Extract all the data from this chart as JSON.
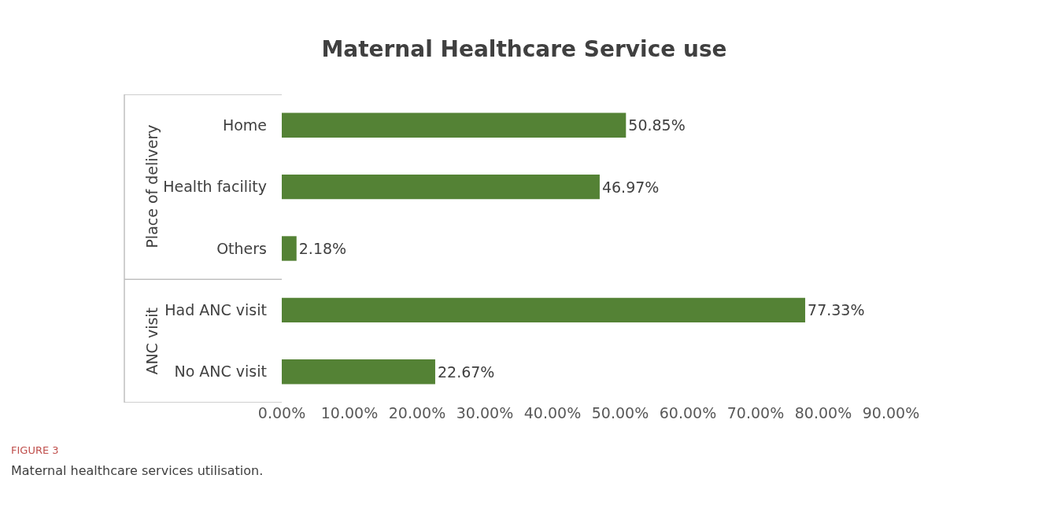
{
  "chart_data": {
    "type": "bar",
    "orientation": "horizontal",
    "title": "Maternal Healthcare Service use",
    "categories": [
      "Home",
      "Health facility",
      "Others",
      "Had ANC visit",
      "No ANC visit"
    ],
    "values": [
      50.85,
      46.97,
      2.18,
      77.33,
      22.67
    ],
    "value_labels": [
      "50.85%",
      "46.97%",
      "2.18%",
      "77.33%",
      "22.67%"
    ],
    "color": "#548235",
    "xlim": [
      0,
      90
    ],
    "xticks": [
      {
        "value": 0,
        "label": "0.00%"
      },
      {
        "value": 10,
        "label": "10.00%"
      },
      {
        "value": 20,
        "label": "20.00%"
      },
      {
        "value": 30,
        "label": "30.00%"
      },
      {
        "value": 40,
        "label": "40.00%"
      },
      {
        "value": 50,
        "label": "50.00%"
      },
      {
        "value": 60,
        "label": "60.00%"
      },
      {
        "value": 70,
        "label": "70.00%"
      },
      {
        "value": 80,
        "label": "80.00%"
      },
      {
        "value": 90,
        "label": "90.00%"
      }
    ],
    "legend": false,
    "annotations": [
      "Place of delivery",
      "ANC visit",
      "FIGURE 3",
      "Maternal healthcare services utilisation."
    ]
  }
}
